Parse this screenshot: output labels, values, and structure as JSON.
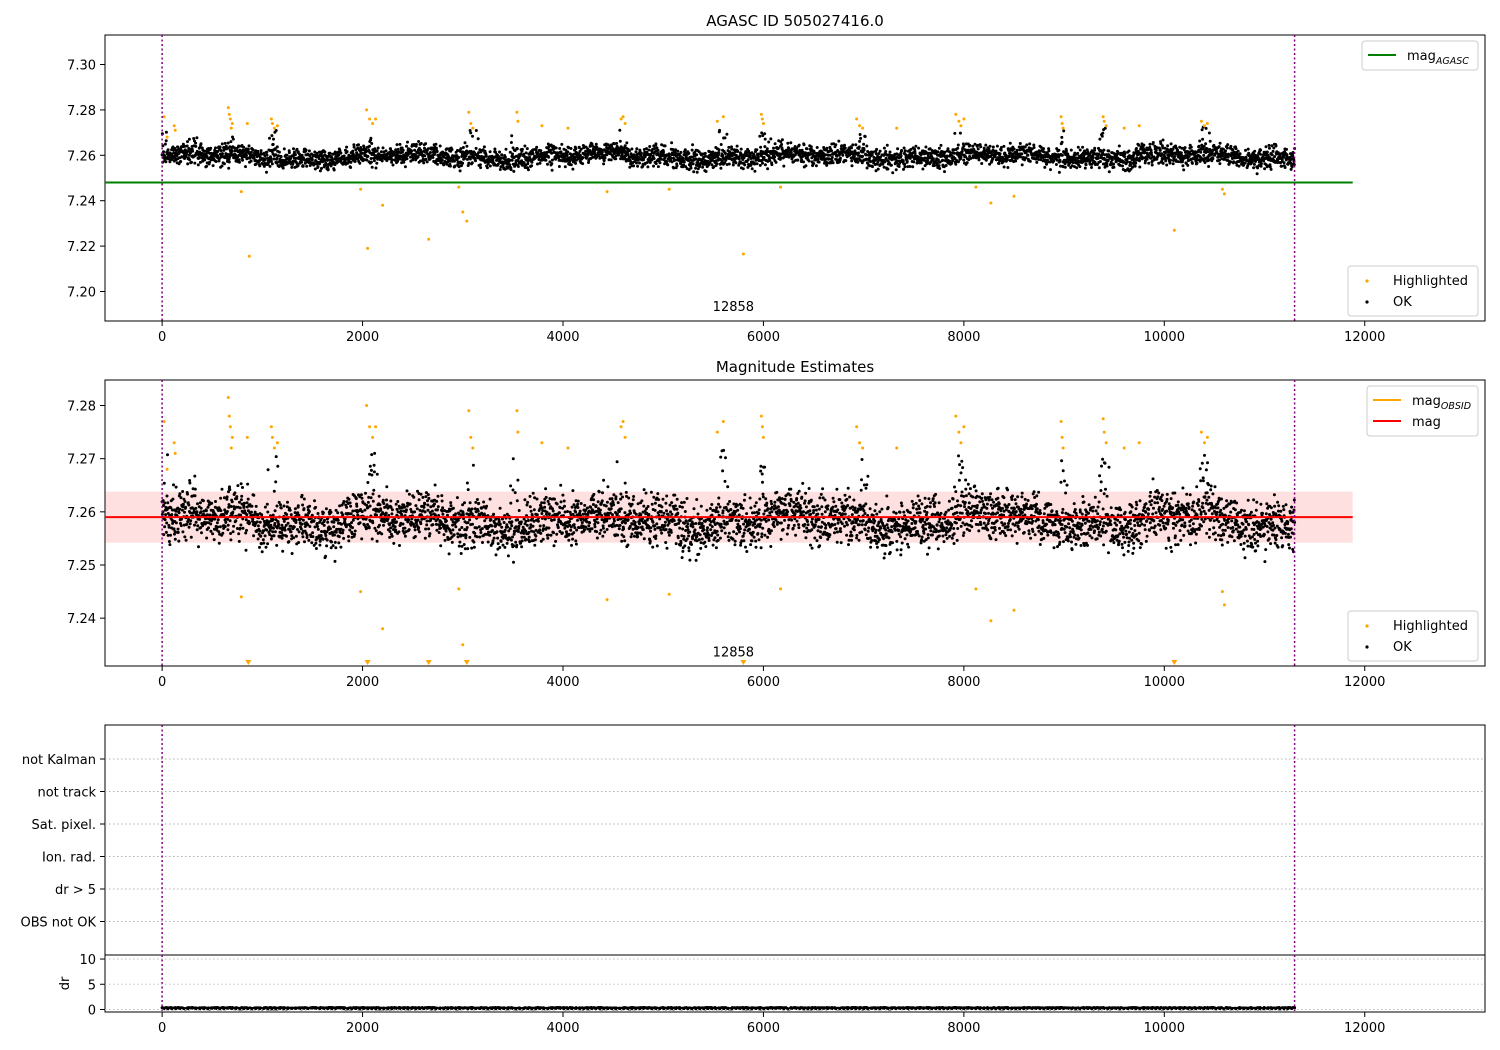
{
  "chart_data": [
    {
      "id": "p1",
      "type": "scatter",
      "title": "AGASC ID 505027416.0",
      "xlim": [
        -570,
        13200
      ],
      "ylim": [
        7.187,
        7.313
      ],
      "x_ticks": [
        0,
        2000,
        4000,
        6000,
        8000,
        10000,
        12000
      ],
      "x_tick_labels": [
        "0",
        "2000",
        "4000",
        "6000",
        "8000",
        "10000",
        "12000"
      ],
      "y_ticks": [
        7.2,
        7.22,
        7.24,
        7.26,
        7.28,
        7.3
      ],
      "y_tick_labels": [
        "7.20",
        "7.22",
        "7.24",
        "7.26",
        "7.28",
        "7.30"
      ],
      "vlines": [
        0,
        11300
      ],
      "hline": {
        "y": 7.248,
        "color": "#008000",
        "xrange": [
          -570,
          11880
        ]
      },
      "annotation": {
        "x": 5700,
        "y": 7.1915,
        "text": "12858"
      },
      "legend_top": [
        {
          "label": "mag",
          "sub": "AGASC",
          "color": "#008000"
        }
      ],
      "legend_bottom": [
        {
          "label": "Highlighted",
          "color": "#ffa500"
        },
        {
          "label": "OK",
          "color": "#000000"
        }
      ],
      "series": [
        {
          "name": "OK",
          "color": "#000000",
          "baseline": 7.2595,
          "spread": 0.0045,
          "x_range": [
            0,
            11300
          ],
          "cluster_peaks": [
            [
              0,
              7.272
            ],
            [
              300,
              7.268
            ],
            [
              700,
              7.269
            ],
            [
              1100,
              7.272
            ],
            [
              2100,
              7.271
            ],
            [
              3100,
              7.272
            ],
            [
              3500,
              7.272
            ],
            [
              4600,
              7.272
            ],
            [
              5600,
              7.272
            ],
            [
              6000,
              7.27
            ],
            [
              7000,
              7.27
            ],
            [
              7950,
              7.272
            ],
            [
              9000,
              7.272
            ],
            [
              9400,
              7.272
            ],
            [
              10400,
              7.273
            ]
          ]
        },
        {
          "name": "Highlighted",
          "color": "#ffa500",
          "x": [
            20,
            50,
            120,
            130,
            660,
            670,
            680,
            690,
            700,
            790,
            850,
            870,
            1090,
            1100,
            1120,
            1150,
            1980,
            2040,
            2050,
            2070,
            2100,
            2130,
            2200,
            2660,
            2960,
            3000,
            3040,
            3060,
            3080,
            3100,
            3540,
            3550,
            3790,
            4050,
            4440,
            4580,
            4600,
            4620,
            5060,
            5540,
            5600,
            5800,
            5980,
            5990,
            6000,
            6170,
            6930,
            6960,
            6990,
            7330,
            7920,
            7950,
            7970,
            8000,
            8120,
            8270,
            8500,
            8970,
            8980,
            8990,
            9390,
            9400,
            9420,
            9600,
            9750,
            10100,
            10370,
            10400,
            10430,
            10580,
            10600
          ],
          "y": [
            7.277,
            7.268,
            7.273,
            7.271,
            7.281,
            7.278,
            7.276,
            7.272,
            7.274,
            7.244,
            7.274,
            7.2155,
            7.276,
            7.274,
            7.272,
            7.273,
            7.245,
            7.28,
            7.219,
            7.276,
            7.274,
            7.276,
            7.238,
            7.223,
            7.246,
            7.235,
            7.231,
            7.279,
            7.274,
            7.272,
            7.279,
            7.275,
            7.273,
            7.272,
            7.244,
            7.276,
            7.277,
            7.274,
            7.245,
            7.275,
            7.277,
            7.2165,
            7.278,
            7.276,
            7.274,
            7.246,
            7.276,
            7.273,
            7.272,
            7.272,
            7.278,
            7.275,
            7.273,
            7.276,
            7.246,
            7.239,
            7.242,
            7.277,
            7.274,
            7.272,
            7.277,
            7.275,
            7.273,
            7.272,
            7.273,
            7.227,
            7.275,
            7.273,
            7.274,
            7.245,
            7.243
          ]
        }
      ]
    },
    {
      "id": "p2",
      "type": "scatter",
      "title": "Magnitude Estimates",
      "xlim": [
        -570,
        13200
      ],
      "ylim": [
        7.231,
        7.2848
      ],
      "x_ticks": [
        0,
        2000,
        4000,
        6000,
        8000,
        10000,
        12000
      ],
      "x_tick_labels": [
        "0",
        "2000",
        "4000",
        "6000",
        "8000",
        "10000",
        "12000"
      ],
      "y_ticks": [
        7.24,
        7.25,
        7.26,
        7.27,
        7.28
      ],
      "y_tick_labels": [
        "7.24",
        "7.25",
        "7.26",
        "7.27",
        "7.28"
      ],
      "vlines": [
        0,
        11300
      ],
      "hline": {
        "y": 7.259,
        "color": "#ff0000",
        "xrange": [
          -570,
          11880
        ]
      },
      "band": {
        "y0": 7.2542,
        "y1": 7.2638,
        "color": "rgba(255,0,0,0.12)",
        "xrange": [
          -570,
          11880
        ]
      },
      "annotation": {
        "x": 5700,
        "y": 7.2328,
        "text": "12858"
      },
      "legend_top": [
        {
          "label": "mag",
          "sub": "OBSID",
          "color": "#ffa500"
        },
        {
          "label": "mag",
          "sub": "",
          "color": "#ff0000"
        }
      ],
      "legend_bottom": [
        {
          "label": "Highlighted",
          "color": "#ffa500"
        },
        {
          "label": "OK",
          "color": "#000000"
        }
      ],
      "triangles_x": [
        860,
        2050,
        2660,
        3040,
        5800,
        10100
      ],
      "series": [
        {
          "name": "OK",
          "color": "#000000",
          "baseline": 7.2583,
          "spread": 0.0045,
          "x_range": [
            0,
            11300
          ],
          "cluster_peaks": [
            [
              0,
              7.272
            ],
            [
              300,
              7.268
            ],
            [
              700,
              7.269
            ],
            [
              1100,
              7.272
            ],
            [
              2100,
              7.271
            ],
            [
              3100,
              7.272
            ],
            [
              3500,
              7.272
            ],
            [
              4600,
              7.272
            ],
            [
              5600,
              7.272
            ],
            [
              6000,
              7.27
            ],
            [
              7000,
              7.27
            ],
            [
              7950,
              7.272
            ],
            [
              9000,
              7.272
            ],
            [
              9400,
              7.272
            ],
            [
              10400,
              7.273
            ]
          ]
        },
        {
          "name": "Highlighted",
          "color": "#ffa500",
          "x": [
            20,
            50,
            120,
            130,
            660,
            670,
            680,
            690,
            700,
            790,
            850,
            1090,
            1100,
            1120,
            1150,
            1980,
            2040,
            2070,
            2100,
            2130,
            2200,
            2960,
            3000,
            3060,
            3080,
            3100,
            3540,
            3550,
            3790,
            4050,
            4440,
            4580,
            4600,
            4620,
            5060,
            5540,
            5600,
            5980,
            5990,
            6000,
            6170,
            6930,
            6960,
            6990,
            7330,
            7920,
            7950,
            7970,
            8000,
            8120,
            8270,
            8500,
            8970,
            8980,
            8990,
            9390,
            9400,
            9420,
            9600,
            9750,
            10370,
            10400,
            10430,
            10580,
            10600
          ],
          "y": [
            7.277,
            7.268,
            7.273,
            7.271,
            7.2815,
            7.278,
            7.276,
            7.272,
            7.274,
            7.244,
            7.274,
            7.276,
            7.274,
            7.272,
            7.273,
            7.245,
            7.28,
            7.276,
            7.274,
            7.276,
            7.238,
            7.2455,
            7.235,
            7.279,
            7.274,
            7.272,
            7.279,
            7.275,
            7.273,
            7.272,
            7.2435,
            7.276,
            7.277,
            7.274,
            7.2445,
            7.275,
            7.277,
            7.278,
            7.276,
            7.274,
            7.2455,
            7.276,
            7.273,
            7.272,
            7.272,
            7.278,
            7.275,
            7.273,
            7.276,
            7.2455,
            7.2395,
            7.2415,
            7.277,
            7.274,
            7.272,
            7.2775,
            7.275,
            7.273,
            7.272,
            7.273,
            7.275,
            7.273,
            7.274,
            7.245,
            7.2425
          ]
        }
      ]
    },
    {
      "id": "p3",
      "type": "scatter",
      "title": "",
      "xlim": [
        -570,
        13200
      ],
      "categories": [
        "not Kalman",
        "not track",
        "Sat. pixel.",
        "Ion. rad.",
        "dr > 5",
        "OBS not OK"
      ],
      "vlines": [
        0,
        11300
      ]
    },
    {
      "id": "p4",
      "type": "scatter",
      "title": "",
      "ylabel": "dr",
      "xlim": [
        -570,
        13200
      ],
      "ylim": [
        -0.5,
        10.8
      ],
      "x_ticks": [
        0,
        2000,
        4000,
        6000,
        8000,
        10000,
        12000
      ],
      "x_tick_labels": [
        "0",
        "2000",
        "4000",
        "6000",
        "8000",
        "10000",
        "12000"
      ],
      "y_ticks": [
        0,
        5,
        10
      ],
      "y_tick_labels": [
        "0",
        "5",
        "10"
      ],
      "vlines": [
        0,
        11300
      ],
      "series": [
        {
          "name": "dr",
          "color": "#000000",
          "baseline": 0.25,
          "spread": 0.15,
          "x_range": [
            0,
            11300
          ]
        }
      ]
    }
  ]
}
